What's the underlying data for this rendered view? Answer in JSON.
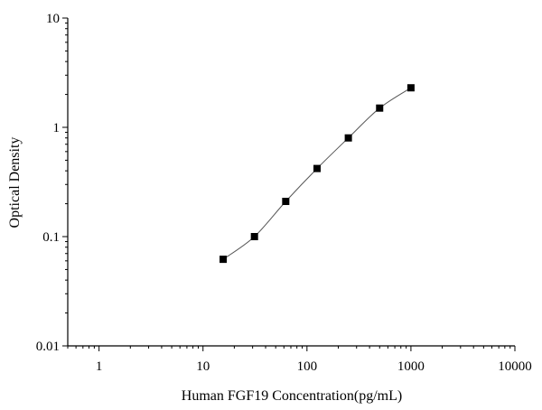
{
  "chart_data": {
    "type": "scatter",
    "xlabel": "Human FGF19 Concentration(pg/mL)",
    "ylabel": "Optical Density",
    "xscale": "log",
    "yscale": "log",
    "xlim": [
      0.5,
      10000
    ],
    "ylim": [
      0.01,
      10
    ],
    "x_ticks": [
      1,
      10,
      100,
      1000,
      10000
    ],
    "x_tick_labels": [
      "1",
      "10",
      "100",
      "1000",
      "10000"
    ],
    "y_ticks": [
      0.01,
      0.1,
      1,
      10
    ],
    "y_tick_labels": [
      "0.01",
      "0.1",
      "1",
      "10"
    ],
    "grid": false,
    "legend": false,
    "marker": "square",
    "marker_color": "#000000",
    "line_color": "#555555",
    "series": [
      {
        "x": [
          15.625,
          31.25,
          62.5,
          125,
          250,
          500,
          1000
        ],
        "y": [
          0.062,
          0.1,
          0.21,
          0.42,
          0.8,
          1.5,
          2.3
        ]
      }
    ]
  }
}
